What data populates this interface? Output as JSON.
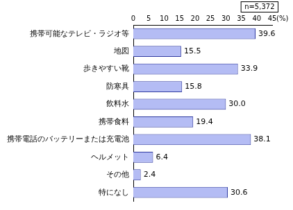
{
  "chart_data": {
    "type": "bar",
    "orientation": "horizontal",
    "xlabel": "(%)",
    "annotations": [
      "n=5,372"
    ],
    "categories": [
      "携帯可能なテレビ・ラジオ等",
      "地図",
      "歩きやすい靴",
      "防寒具",
      "飲料水",
      "携帯食料",
      "携帯電話のバッテリーまたは充電池",
      "ヘルメット",
      "その他",
      "特になし"
    ],
    "values": [
      39.6,
      15.5,
      33.9,
      15.8,
      30.0,
      19.4,
      38.1,
      6.4,
      2.4,
      30.6
    ],
    "value_labels": [
      "39.6",
      "15.5",
      "33.9",
      "15.8",
      "30.0",
      "19.4",
      "38.1",
      "6.4",
      "2.4",
      "30.6"
    ],
    "color": "#b4bcf4",
    "xlim": [
      0,
      45
    ],
    "xticks": [
      0,
      5,
      10,
      15,
      20,
      25,
      30,
      35,
      40,
      45
    ],
    "grid": false,
    "data_labels": true
  }
}
